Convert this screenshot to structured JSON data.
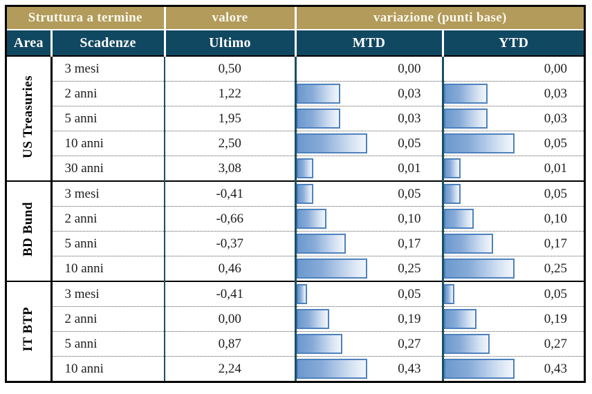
{
  "title": "Struttura a termine",
  "colors": {
    "header_gold": "#B29B5B",
    "header_navy": "#114861",
    "divider_teal": "#1C4E63",
    "group_border": "#000000",
    "bar_border": "#4E81BD",
    "bar_fill_start": "#6C99CE",
    "bar_fill_end": "#F2F6FC",
    "body_text": "#1C1C1C",
    "header_text": "#FFFFFF"
  },
  "header": {
    "group_headers": [
      "Struttura a termine",
      "valore",
      "variazione (punti base)"
    ],
    "columns": [
      "Area",
      "Scadenze",
      "Ultimo",
      "MTD",
      "YTD"
    ]
  },
  "groups": [
    {
      "area": "US Treasuries",
      "rows": [
        {
          "scadenza": "3 mesi",
          "ultimo": "0,50",
          "mtd": "0,00",
          "ytd": "0,00",
          "mtd_value": 0.0,
          "ytd_value": 0.0
        },
        {
          "scadenza": "2 anni",
          "ultimo": "1,22",
          "mtd": "0,03",
          "ytd": "0,03",
          "mtd_value": 0.03,
          "ytd_value": 0.03
        },
        {
          "scadenza": "5 anni",
          "ultimo": "1,95",
          "mtd": "0,03",
          "ytd": "0,03",
          "mtd_value": 0.03,
          "ytd_value": 0.03
        },
        {
          "scadenza": "10 anni",
          "ultimo": "2,50",
          "mtd": "0,05",
          "ytd": "0,05",
          "mtd_value": 0.05,
          "ytd_value": 0.05
        },
        {
          "scadenza": "30 anni",
          "ultimo": "3,08",
          "mtd": "0,01",
          "ytd": "0,01",
          "mtd_value": 0.01,
          "ytd_value": 0.01
        }
      ]
    },
    {
      "area": "BD Bund",
      "rows": [
        {
          "scadenza": "3 mesi",
          "ultimo": "-0,41",
          "mtd": "0,05",
          "ytd": "0,05",
          "mtd_value": 0.05,
          "ytd_value": 0.05
        },
        {
          "scadenza": "2 anni",
          "ultimo": "-0,66",
          "mtd": "0,10",
          "ytd": "0,10",
          "mtd_value": 0.1,
          "ytd_value": 0.1
        },
        {
          "scadenza": "5 anni",
          "ultimo": "-0,37",
          "mtd": "0,17",
          "ytd": "0,17",
          "mtd_value": 0.17,
          "ytd_value": 0.17
        },
        {
          "scadenza": "10 anni",
          "ultimo": "0,46",
          "mtd": "0,25",
          "ytd": "0,25",
          "mtd_value": 0.25,
          "ytd_value": 0.25
        }
      ]
    },
    {
      "area": "IT BTP",
      "rows": [
        {
          "scadenza": "3 mesi",
          "ultimo": "-0,41",
          "mtd": "0,05",
          "ytd": "0,05",
          "mtd_value": 0.05,
          "ytd_value": 0.05
        },
        {
          "scadenza": "2 anni",
          "ultimo": "0,00",
          "mtd": "0,19",
          "ytd": "0,19",
          "mtd_value": 0.19,
          "ytd_value": 0.19
        },
        {
          "scadenza": "5 anni",
          "ultimo": "0,87",
          "mtd": "0,27",
          "ytd": "0,27",
          "mtd_value": 0.27,
          "ytd_value": 0.27
        },
        {
          "scadenza": "10 anni",
          "ultimo": "2,24",
          "mtd": "0,43",
          "ytd": "0,43",
          "mtd_value": 0.43,
          "ytd_value": 0.43
        }
      ]
    }
  ],
  "chart_data": {
    "type": "table",
    "title": "Struttura a termine",
    "column_groups": [
      "Struttura a termine",
      "valore",
      "variazione (punti base)"
    ],
    "columns": [
      "Area",
      "Scadenze",
      "Ultimo",
      "MTD",
      "YTD"
    ],
    "bar_columns": [
      "MTD",
      "YTD"
    ],
    "bar_scaling": "data bars scaled per area group; group max value renders as full-length bar (~98px)",
    "rows": [
      [
        "US Treasuries",
        "3 mesi",
        0.5,
        0.0,
        0.0
      ],
      [
        "US Treasuries",
        "2 anni",
        1.22,
        0.03,
        0.03
      ],
      [
        "US Treasuries",
        "5 anni",
        1.95,
        0.03,
        0.03
      ],
      [
        "US Treasuries",
        "10 anni",
        2.5,
        0.05,
        0.05
      ],
      [
        "US Treasuries",
        "30 anni",
        3.08,
        0.01,
        0.01
      ],
      [
        "BD Bund",
        "3 mesi",
        -0.41,
        0.05,
        0.05
      ],
      [
        "BD Bund",
        "2 anni",
        -0.66,
        0.1,
        0.1
      ],
      [
        "BD Bund",
        "5 anni",
        -0.37,
        0.17,
        0.17
      ],
      [
        "BD Bund",
        "10 anni",
        0.46,
        0.25,
        0.25
      ],
      [
        "IT BTP",
        "3 mesi",
        -0.41,
        0.05,
        0.05
      ],
      [
        "IT BTP",
        "2 anni",
        0.0,
        0.19,
        0.19
      ],
      [
        "IT BTP",
        "5 anni",
        0.87,
        0.27,
        0.27
      ],
      [
        "IT BTP",
        "10 anni",
        2.24,
        0.43,
        0.43
      ]
    ]
  }
}
